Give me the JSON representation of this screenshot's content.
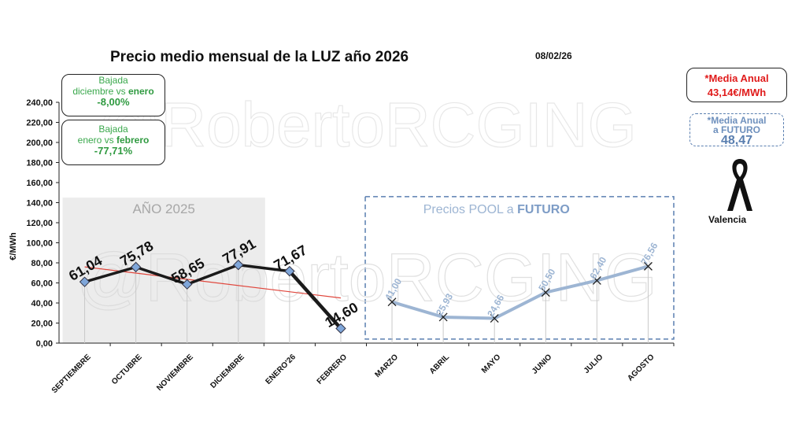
{
  "title": "Precio medio mensual de la LUZ año 2026",
  "date": "08/02/26",
  "watermark": "@RobertoRCGING",
  "boxes": {
    "box1": {
      "line1": "Bajada",
      "line2a": "diciembre vs ",
      "line2b": "enero",
      "pct": "-8,00%"
    },
    "box2": {
      "line1": "Bajada",
      "line2a": "enero vs ",
      "line2b": "febrero",
      "pct": "-77,71%"
    }
  },
  "media_anual": {
    "label": "*Media Anual",
    "value": "43,14€/MWh"
  },
  "media_futuro": {
    "label": "*Media Anual",
    "label2": "a FUTURO",
    "value": "48,47"
  },
  "valencia_label": "Valencia",
  "colors": {
    "actual_line": "#1a1a1a",
    "future_line": "#9db5d3",
    "trend": "#e0463c",
    "marker_fill": "#7fa6d9",
    "shade_2025": "#ececec",
    "future_box_border": "#5a7fb0"
  },
  "chart_data": {
    "type": "line",
    "ylabel": "€/MWh",
    "ylim": [
      0,
      240
    ],
    "yticks": [
      "0,00",
      "20,00",
      "40,00",
      "60,00",
      "80,00",
      "100,00",
      "120,00",
      "140,00",
      "160,00",
      "180,00",
      "200,00",
      "220,00",
      "240,00"
    ],
    "categories": [
      "SEPTIEMBRE",
      "OCTUBRE",
      "NOVIEMBRE",
      "DICIEMBRE",
      "ENERO'26",
      "FEBRERO",
      "MARZO",
      "ABRIL",
      "MAYO",
      "JUNIO",
      "JULIO",
      "AGOSTO"
    ],
    "series": [
      {
        "name": "",
        "values": [
          61.04,
          75.78,
          58.65,
          77.91,
          71.67,
          14.6,
          null,
          null,
          null,
          null,
          null,
          null
        ],
        "labels": [
          "61,04",
          "75,78",
          "58,65",
          "77,91",
          "71,67",
          "14,60",
          "",
          "",
          "",
          "",
          "",
          ""
        ]
      },
      {
        "name": "",
        "values": [
          null,
          null,
          null,
          null,
          null,
          null,
          41.0,
          25.93,
          24.66,
          50.5,
          62.4,
          76.56
        ],
        "labels": [
          "",
          "",
          "",
          "",
          "",
          "",
          "41,00",
          "25,93",
          "24,66",
          "50,50",
          "62,40",
          "76,56"
        ]
      }
    ],
    "trendline": {
      "from": 76,
      "to": 45
    },
    "regions": {
      "past": "AÑO 2025",
      "future_a": "Precios POOL a ",
      "future_b": "FUTURO"
    },
    "grid": false
  }
}
